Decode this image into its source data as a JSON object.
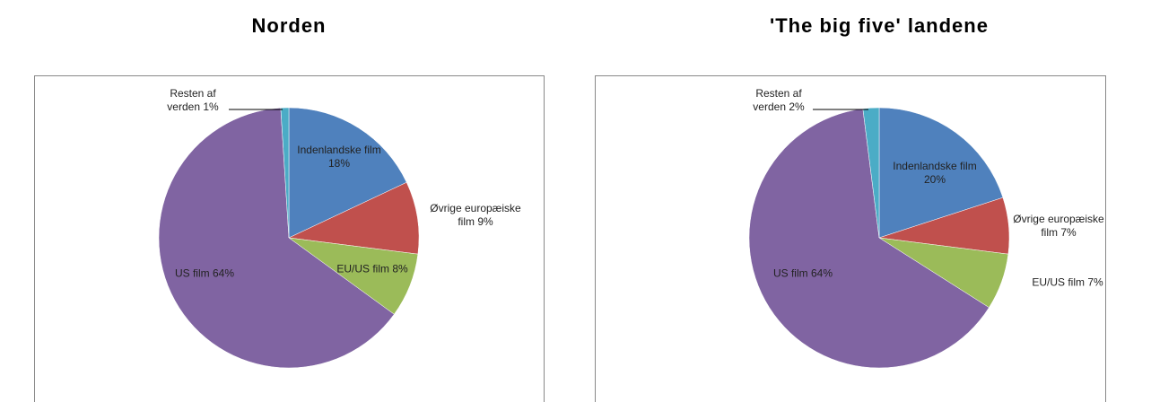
{
  "chart_data": [
    {
      "type": "pie",
      "title": "Norden",
      "categories": [
        "Indenlandske film",
        "Øvrige europæiske film",
        "EU/US film",
        "US film",
        "Resten af verden"
      ],
      "values": [
        18,
        9,
        8,
        64,
        1
      ],
      "value_labels": [
        "18%",
        "9%",
        "8%",
        "64%",
        "1%"
      ],
      "colors": [
        "#4f81bd",
        "#c0504d",
        "#9bbb59",
        "#8064a2",
        "#4bacc6"
      ]
    },
    {
      "type": "pie",
      "title": "'The big five' landene",
      "categories": [
        "Indenlandske film",
        "Øvrige europæiske film",
        "EU/US film",
        "US film",
        "Resten af verden"
      ],
      "values": [
        20,
        7,
        7,
        64,
        2
      ],
      "value_labels": [
        "20%",
        "7%",
        "7%",
        "64%",
        "2%"
      ],
      "colors": [
        "#4f81bd",
        "#c0504d",
        "#9bbb59",
        "#8064a2",
        "#4bacc6"
      ]
    }
  ]
}
